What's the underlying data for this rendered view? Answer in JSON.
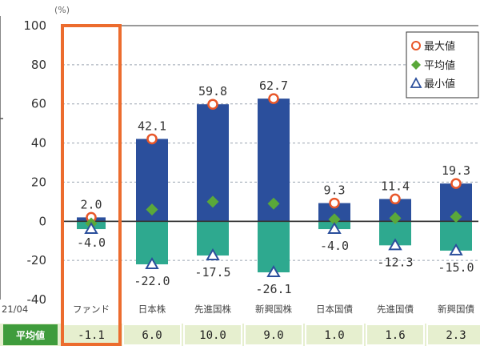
{
  "chart_data": {
    "type": "bar",
    "unit": "(%)",
    "left_date_label": "21/04",
    "categories": [
      "ファンド",
      "日本株",
      "先進国株",
      "新興国株",
      "日本国債",
      "先進国債",
      "新興国債"
    ],
    "series": [
      {
        "name": "最大値",
        "values": [
          2.0,
          42.1,
          59.8,
          62.7,
          9.3,
          11.4,
          19.3
        ]
      },
      {
        "name": "平均値",
        "values": [
          -1.1,
          6.0,
          10.0,
          9.0,
          1.0,
          1.6,
          2.3
        ]
      },
      {
        "name": "最小値",
        "values": [
          -4.0,
          -22.0,
          -17.5,
          -26.1,
          -4.0,
          -12.3,
          -15.0
        ]
      }
    ],
    "max_labels": [
      "2.0",
      "42.1",
      "59.8",
      "62.7",
      "9.3",
      "11.4",
      "19.3"
    ],
    "min_labels": [
      "-4.0",
      "-22.0",
      "-17.5",
      "-26.1",
      "-4.0",
      "-12.3",
      "-15.0"
    ],
    "ylim": [
      -40,
      100
    ],
    "yticks": [
      -40,
      -20,
      0,
      20,
      40,
      60,
      80,
      100
    ],
    "legend_position": "top-right",
    "highlighted_category": "ファンド",
    "grid": true,
    "average_row": {
      "label": "平均値",
      "values": [
        "-1.1",
        "6.0",
        "10.0",
        "9.0",
        "1.0",
        "1.6",
        "2.3"
      ]
    },
    "colors": {
      "positive_bar": "#2b4f9c",
      "negative_bar": "#2ea98f",
      "max_marker": "#e8572a",
      "avg_marker": "#5aa83a",
      "min_marker": "#2b4f9c",
      "highlight_frame": "#ec6c2e",
      "avg_row_bg": "#e6efcf",
      "avg_head_bg": "#3f9c3c"
    }
  }
}
